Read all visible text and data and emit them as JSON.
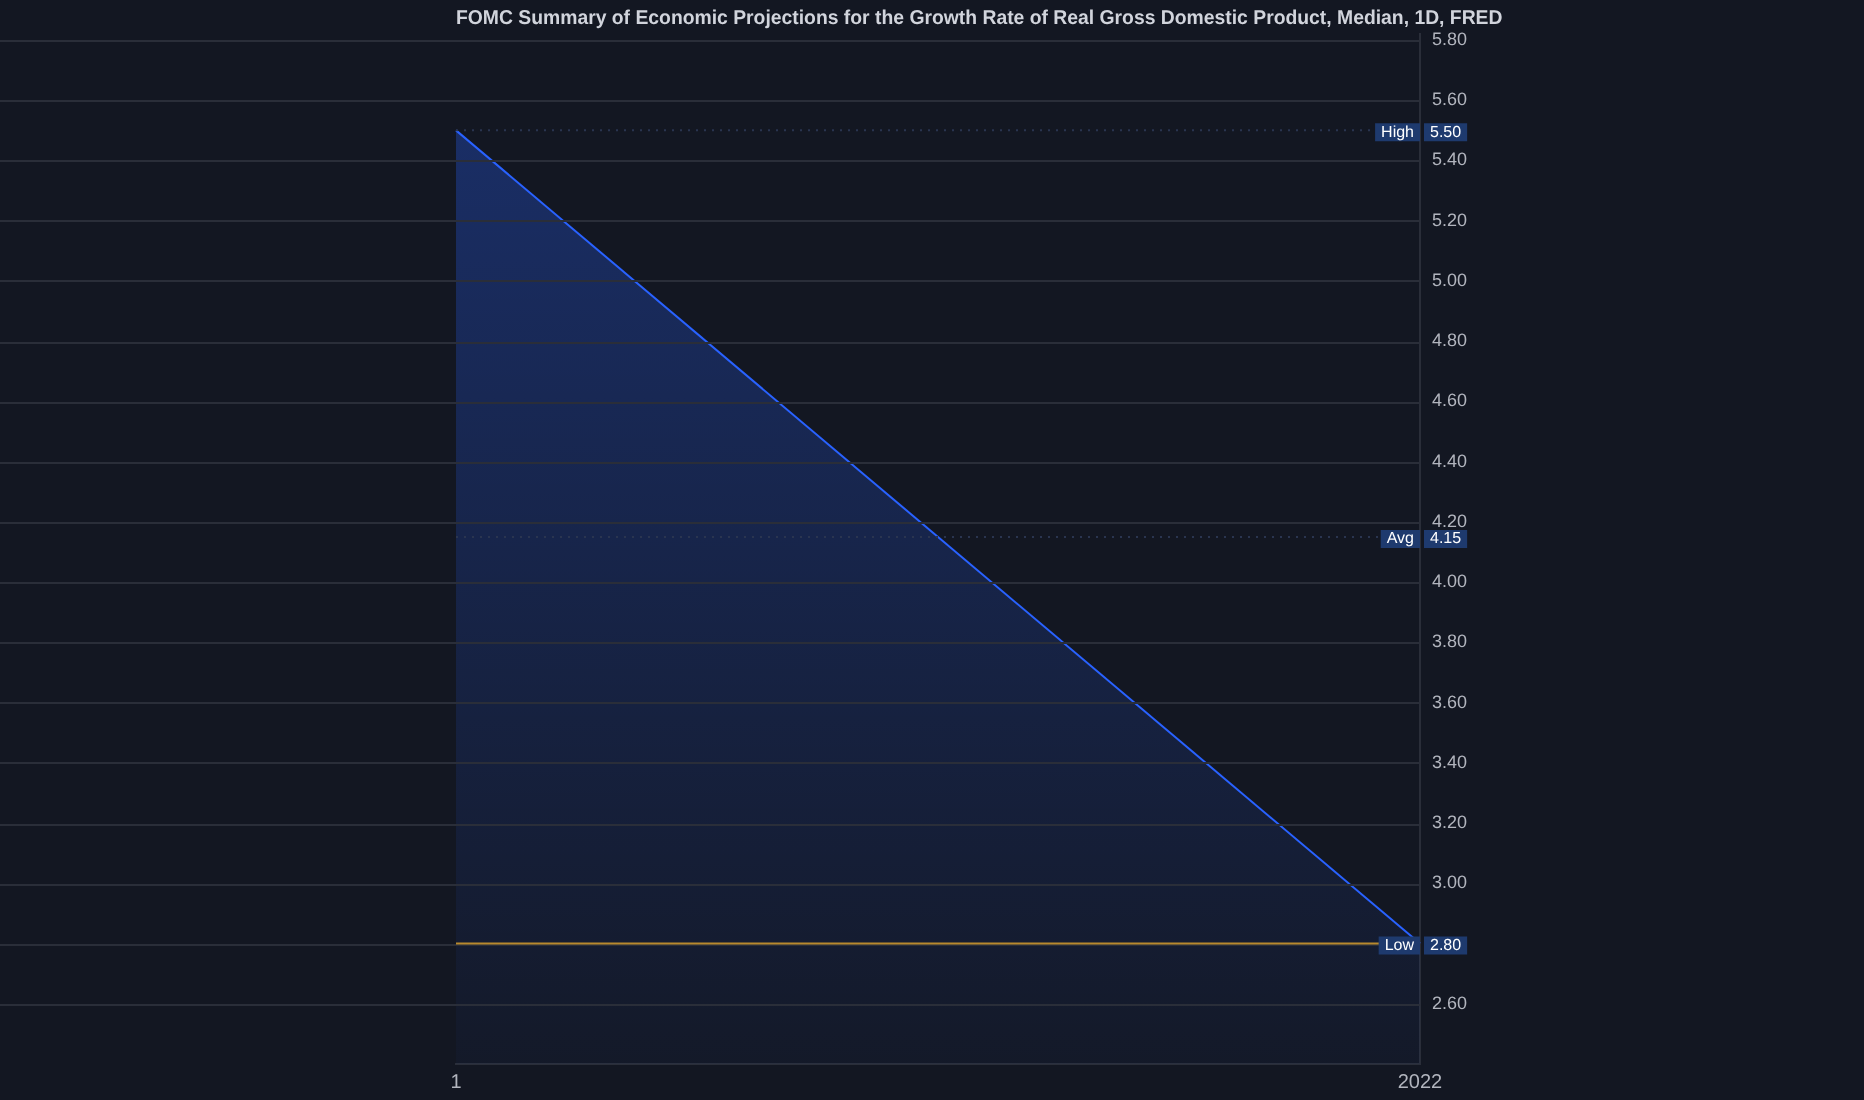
{
  "chart_data": {
    "type": "area",
    "title": "FOMC Summary of Economic Projections for the Growth Rate of Real Gross Domestic Product, Median, 1D, FRED",
    "categories": [
      "1",
      "2022"
    ],
    "series": [
      {
        "color": "#2962ff",
        "values": [
          5.5,
          2.8
        ]
      }
    ],
    "ylim": [
      2.4,
      5.82
    ],
    "yticks": [
      {
        "value": 2.6,
        "label": "2.60"
      },
      {
        "value": 2.8,
        "label": null
      },
      {
        "value": 3.0,
        "label": "3.00"
      },
      {
        "value": 3.2,
        "label": "3.20"
      },
      {
        "value": 3.4,
        "label": "3.40"
      },
      {
        "value": 3.6,
        "label": "3.60"
      },
      {
        "value": 3.8,
        "label": "3.80"
      },
      {
        "value": 4.0,
        "label": "4.00"
      },
      {
        "value": 4.2,
        "label": "4.20"
      },
      {
        "value": 4.4,
        "label": "4.40"
      },
      {
        "value": 4.6,
        "label": "4.60"
      },
      {
        "value": 4.8,
        "label": "4.80"
      },
      {
        "value": 5.0,
        "label": "5.00"
      },
      {
        "value": 5.2,
        "label": "5.20"
      },
      {
        "value": 5.4,
        "label": "5.40"
      },
      {
        "value": 5.6,
        "label": "5.60"
      },
      {
        "value": 5.8,
        "label": "5.80"
      }
    ],
    "ref_lines": [
      {
        "axis": "y",
        "value": 5.5,
        "label": "High 5.50",
        "color": "#2a3550",
        "line_style": "dotted"
      },
      {
        "axis": "y",
        "value": 4.15,
        "label": "Avg 4.15",
        "color": "#2a3550",
        "line_style": "dotted"
      },
      {
        "axis": "y",
        "value": 2.8,
        "label": "Low 2.80",
        "color": "#b8892e"
      }
    ],
    "grid": "y",
    "legend": false
  }
}
